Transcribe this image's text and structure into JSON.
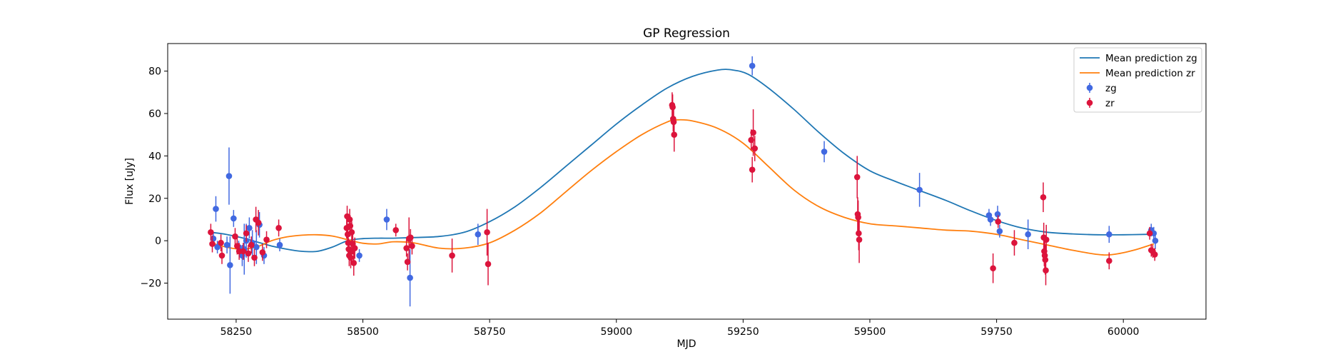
{
  "chart_data": {
    "type": "scatter",
    "title": "GP Regression",
    "xlabel": "MJD",
    "ylabel": "Flux [uJy]",
    "xlim": [
      58115,
      60163
    ],
    "ylim": [
      -37,
      93
    ],
    "xticks": [
      58250,
      58500,
      58750,
      59000,
      59250,
      59500,
      59750,
      60000
    ],
    "yticks": [
      -20,
      0,
      20,
      40,
      60,
      80
    ],
    "legend_position": "top-right",
    "lines": [
      {
        "name": "Mean prediction zg",
        "color": "#1f77b4",
        "x": [
          58200,
          58230,
          58260,
          58290,
          58320,
          58350,
          58380,
          58410,
          58440,
          58470,
          58500,
          58530,
          58560,
          58600,
          58650,
          58700,
          58750,
          58800,
          58850,
          58900,
          58950,
          59000,
          59050,
          59100,
          59150,
          59200,
          59230,
          59260,
          59300,
          59350,
          59400,
          59450,
          59500,
          59550,
          59600,
          59650,
          59700,
          59750,
          59800,
          59850,
          59900,
          59950,
          60000,
          60050,
          60060
        ],
        "y": [
          4,
          3,
          1.5,
          -0.5,
          -2.5,
          -4,
          -5,
          -5,
          -3,
          0,
          1,
          1.2,
          1.2,
          1.5,
          2,
          4,
          9,
          16,
          25,
          35,
          45,
          55,
          64,
          72,
          77.5,
          80.5,
          80.5,
          78.5,
          72,
          62,
          51,
          41,
          33,
          28,
          23.5,
          19,
          14,
          9.5,
          6,
          4,
          3.2,
          2.8,
          2.8,
          3,
          3
        ]
      },
      {
        "name": "Mean prediction zr",
        "color": "#ff7f0e",
        "x": [
          58200,
          58230,
          58260,
          58290,
          58320,
          58350,
          58380,
          58410,
          58440,
          58470,
          58500,
          58530,
          58560,
          58600,
          58650,
          58700,
          58750,
          58800,
          58850,
          58900,
          58950,
          59000,
          59050,
          59100,
          59120,
          59150,
          59200,
          59250,
          59300,
          59350,
          59400,
          59450,
          59500,
          59550,
          59600,
          59650,
          59700,
          59750,
          59800,
          59850,
          59900,
          59950,
          59980,
          60020,
          60060
        ],
        "y": [
          -1,
          -3,
          -4,
          -3,
          0,
          1.8,
          2.6,
          2.8,
          2.2,
          0.5,
          -1.2,
          -1.5,
          -0.5,
          -1,
          -3.5,
          -3.5,
          -1,
          5,
          13,
          23,
          33,
          42,
          50,
          56,
          57,
          56.5,
          53,
          46,
          35,
          24,
          16,
          11,
          8,
          7,
          6,
          5,
          4.5,
          3,
          0.5,
          -2,
          -4.5,
          -6.5,
          -6.5,
          -4.5,
          -1.5
        ]
      }
    ],
    "series": [
      {
        "name": "zg",
        "color": "#4169e1",
        "points": [
          {
            "x": 58205,
            "y": 1,
            "err": 3
          },
          {
            "x": 58210,
            "y": 15,
            "err": 6
          },
          {
            "x": 58213,
            "y": -3,
            "err": 3
          },
          {
            "x": 58232,
            "y": -2,
            "err": 4
          },
          {
            "x": 58236,
            "y": 30.5,
            "err": 13.5
          },
          {
            "x": 58238,
            "y": -11.5,
            "err": 13.5
          },
          {
            "x": 58245,
            "y": 10.5,
            "err": 4
          },
          {
            "x": 58255,
            "y": -3,
            "err": 3
          },
          {
            "x": 58262,
            "y": -7,
            "err": 5
          },
          {
            "x": 58266,
            "y": -4,
            "err": 12
          },
          {
            "x": 58270,
            "y": 0,
            "err": 8
          },
          {
            "x": 58276,
            "y": 6,
            "err": 5
          },
          {
            "x": 58282,
            "y": -1,
            "err": 6
          },
          {
            "x": 58290,
            "y": -3,
            "err": 8
          },
          {
            "x": 58296,
            "y": 7.5,
            "err": 6
          },
          {
            "x": 58305,
            "y": -7,
            "err": 4
          },
          {
            "x": 58336,
            "y": -2,
            "err": 3
          },
          {
            "x": 58493,
            "y": -7,
            "err": 3
          },
          {
            "x": 58547,
            "y": 10,
            "err": 5
          },
          {
            "x": 58593,
            "y": -17.5,
            "err": 13.5
          },
          {
            "x": 58727,
            "y": 3,
            "err": 5
          },
          {
            "x": 59268,
            "y": 82.5,
            "err": 4.5
          },
          {
            "x": 59410,
            "y": 42,
            "err": 5
          },
          {
            "x": 59598,
            "y": 24,
            "err": 8
          },
          {
            "x": 59735,
            "y": 12,
            "err": 3
          },
          {
            "x": 59738,
            "y": 10,
            "err": 3
          },
          {
            "x": 59752,
            "y": 12.5,
            "err": 4
          },
          {
            "x": 59756,
            "y": 4.5,
            "err": 3
          },
          {
            "x": 59812,
            "y": 3,
            "err": 7
          },
          {
            "x": 59972,
            "y": 3,
            "err": 4
          },
          {
            "x": 60055,
            "y": 5,
            "err": 3
          },
          {
            "x": 60060,
            "y": 3.5,
            "err": 3
          },
          {
            "x": 60063,
            "y": 0,
            "err": 4
          }
        ]
      },
      {
        "name": "zr",
        "color": "#dc143c",
        "points": [
          {
            "x": 58200,
            "y": 4,
            "err": 4
          },
          {
            "x": 58203,
            "y": -1.5,
            "err": 4
          },
          {
            "x": 58220,
            "y": -1,
            "err": 4
          },
          {
            "x": 58222,
            "y": -7,
            "err": 4
          },
          {
            "x": 58248,
            "y": 2,
            "err": 4
          },
          {
            "x": 58252,
            "y": -2.5,
            "err": 4
          },
          {
            "x": 58256,
            "y": -5,
            "err": 4
          },
          {
            "x": 58264,
            "y": -5,
            "err": 4
          },
          {
            "x": 58270,
            "y": 3.5,
            "err": 4
          },
          {
            "x": 58274,
            "y": -6,
            "err": 4
          },
          {
            "x": 58280,
            "y": -2,
            "err": 4
          },
          {
            "x": 58286,
            "y": -8,
            "err": 4
          },
          {
            "x": 58289,
            "y": 10,
            "err": 6
          },
          {
            "x": 58294,
            "y": 8.5,
            "err": 6
          },
          {
            "x": 58302,
            "y": -5.5,
            "err": 4
          },
          {
            "x": 58310,
            "y": 0.5,
            "err": 4
          },
          {
            "x": 58334,
            "y": 6,
            "err": 4
          },
          {
            "x": 58468,
            "y": 6,
            "err": 5
          },
          {
            "x": 58469,
            "y": 11.5,
            "err": 5
          },
          {
            "x": 58470,
            "y": 3,
            "err": 5
          },
          {
            "x": 58471,
            "y": -1,
            "err": 5
          },
          {
            "x": 58472,
            "y": -4,
            "err": 5
          },
          {
            "x": 58473,
            "y": -7,
            "err": 5
          },
          {
            "x": 58474,
            "y": 10,
            "err": 5
          },
          {
            "x": 58475,
            "y": 7,
            "err": 5
          },
          {
            "x": 58476,
            "y": -8,
            "err": 5
          },
          {
            "x": 58477,
            "y": -5,
            "err": 5
          },
          {
            "x": 58478,
            "y": 4,
            "err": 5
          },
          {
            "x": 58480,
            "y": -1.5,
            "err": 5
          },
          {
            "x": 58482,
            "y": -10.5,
            "err": 6
          },
          {
            "x": 58484,
            "y": -3.5,
            "err": 5
          },
          {
            "x": 58565,
            "y": 5,
            "err": 3
          },
          {
            "x": 58586,
            "y": -3.5,
            "err": 4
          },
          {
            "x": 58588,
            "y": -10,
            "err": 4
          },
          {
            "x": 58591,
            "y": 1,
            "err": 10
          },
          {
            "x": 58594,
            "y": 1.5,
            "err": 4
          },
          {
            "x": 58597,
            "y": -2.5,
            "err": 4
          },
          {
            "x": 58676,
            "y": -7,
            "err": 8
          },
          {
            "x": 58745,
            "y": 4,
            "err": 11
          },
          {
            "x": 58747,
            "y": -11,
            "err": 10
          },
          {
            "x": 59110,
            "y": 64,
            "err": 6
          },
          {
            "x": 59111,
            "y": 63,
            "err": 6
          },
          {
            "x": 59112,
            "y": 57.5,
            "err": 6
          },
          {
            "x": 59113,
            "y": 56,
            "err": 6
          },
          {
            "x": 59114,
            "y": 50,
            "err": 8
          },
          {
            "x": 59266,
            "y": 47.5,
            "err": 5
          },
          {
            "x": 59268,
            "y": 33.5,
            "err": 6
          },
          {
            "x": 59270,
            "y": 51,
            "err": 11
          },
          {
            "x": 59273,
            "y": 43.5,
            "err": 6
          },
          {
            "x": 59475,
            "y": 30,
            "err": 10
          },
          {
            "x": 59476,
            "y": 12.5,
            "err": 8
          },
          {
            "x": 59477,
            "y": 11,
            "err": 8
          },
          {
            "x": 59478,
            "y": 3.5,
            "err": 8
          },
          {
            "x": 59479,
            "y": 0.5,
            "err": 11
          },
          {
            "x": 59743,
            "y": -13,
            "err": 7
          },
          {
            "x": 59753,
            "y": 9,
            "err": 3
          },
          {
            "x": 59785,
            "y": -1,
            "err": 6
          },
          {
            "x": 59842,
            "y": 20.5,
            "err": 7
          },
          {
            "x": 59843,
            "y": 1.5,
            "err": 7
          },
          {
            "x": 59844,
            "y": -5,
            "err": 7
          },
          {
            "x": 59845,
            "y": -7,
            "err": 7
          },
          {
            "x": 59846,
            "y": -9,
            "err": 7
          },
          {
            "x": 59847,
            "y": -14,
            "err": 7
          },
          {
            "x": 59848,
            "y": 0.5,
            "err": 7
          },
          {
            "x": 59972,
            "y": -9.5,
            "err": 4
          },
          {
            "x": 60052,
            "y": 3.5,
            "err": 3
          },
          {
            "x": 60055,
            "y": -4.5,
            "err": 3
          },
          {
            "x": 60058,
            "y": -5,
            "err": 3
          },
          {
            "x": 60062,
            "y": -6.5,
            "err": 3
          }
        ]
      }
    ]
  }
}
